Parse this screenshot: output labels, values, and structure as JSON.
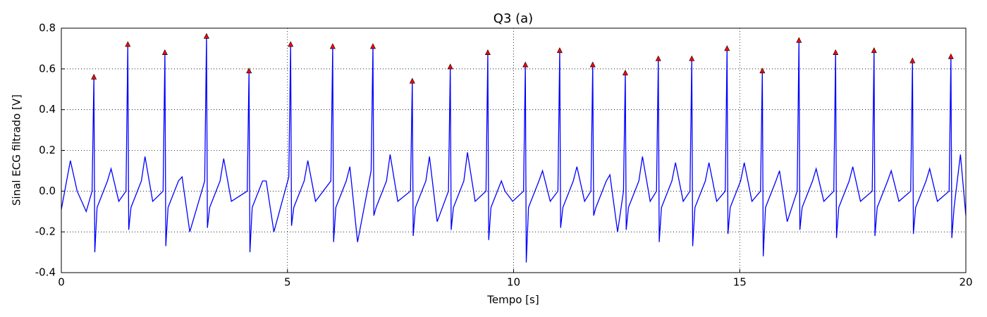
{
  "chart_data": {
    "type": "line",
    "title": "Q3 (a)",
    "xlabel": "Tempo [s]",
    "ylabel": "Sinal ECG filtrado [V]",
    "color": "#0000ff",
    "grid": true,
    "xlim": [
      0,
      20
    ],
    "ylim": [
      -0.4,
      0.8
    ],
    "xticks": [
      0,
      5,
      10,
      15,
      20
    ],
    "yticks": [
      -0.4,
      -0.2,
      {
        "value": 0,
        "label": "0.0"
      },
      0.2,
      0.4,
      0.6,
      0.8
    ],
    "x": [
      0,
      0.2,
      0.35,
      0.55,
      0.68,
      0.72,
      0.74,
      0.79,
      1.02,
      1.1,
      1.27,
      1.43,
      1.47,
      1.49,
      1.54,
      1.77,
      1.85,
      2.02,
      2.25,
      2.29,
      2.31,
      2.36,
      2.59,
      2.67,
      2.84,
      3.17,
      3.21,
      3.23,
      3.28,
      3.51,
      3.59,
      3.76,
      4.11,
      4.15,
      4.17,
      4.22,
      4.45,
      4.53,
      4.7,
      5.03,
      5.07,
      5.09,
      5.14,
      5.37,
      5.45,
      5.62,
      5.96,
      6.0,
      6.02,
      6.07,
      6.3,
      6.38,
      6.55,
      6.85,
      6.89,
      6.91,
      6.96,
      7.19,
      7.27,
      7.44,
      7.72,
      7.76,
      7.78,
      7.83,
      8.06,
      8.14,
      8.31,
      8.56,
      8.6,
      8.62,
      8.67,
      8.9,
      8.98,
      9.15,
      9.39,
      9.43,
      9.45,
      9.5,
      9.73,
      9.81,
      9.98,
      10.22,
      10.26,
      10.28,
      10.33,
      10.56,
      10.64,
      10.81,
      10.98,
      11.02,
      11.04,
      11.09,
      11.32,
      11.4,
      11.57,
      11.71,
      11.75,
      11.77,
      11.82,
      12.05,
      12.13,
      12.3,
      12.43,
      12.47,
      12.49,
      12.54,
      12.77,
      12.85,
      13.02,
      13.16,
      13.2,
      13.22,
      13.27,
      13.5,
      13.58,
      13.75,
      13.9,
      13.94,
      13.96,
      14.01,
      14.24,
      14.32,
      14.49,
      14.68,
      14.72,
      14.74,
      14.79,
      15.02,
      15.1,
      15.27,
      15.46,
      15.5,
      15.52,
      15.57,
      15.8,
      15.88,
      16.05,
      16.27,
      16.31,
      16.33,
      16.38,
      16.61,
      16.69,
      16.86,
      17.08,
      17.12,
      17.14,
      17.19,
      17.42,
      17.5,
      17.67,
      17.93,
      17.97,
      17.99,
      18.04,
      18.27,
      18.35,
      18.52,
      18.78,
      18.82,
      18.84,
      18.89,
      19.12,
      19.2,
      19.37,
      19.63,
      19.67,
      19.69,
      19.74,
      19.88,
      20.0
    ],
    "values": [
      -0.09,
      0.15,
      0.0,
      -0.1,
      0.0,
      0.56,
      -0.3,
      -0.08,
      0.05,
      0.11,
      -0.05,
      0.0,
      0.72,
      -0.19,
      -0.08,
      0.05,
      0.17,
      -0.05,
      0.0,
      0.68,
      -0.27,
      -0.08,
      0.05,
      0.07,
      -0.2,
      0.05,
      0.76,
      -0.18,
      -0.08,
      0.05,
      0.16,
      -0.05,
      0.0,
      0.59,
      -0.3,
      -0.08,
      0.05,
      0.05,
      -0.2,
      0.07,
      0.72,
      -0.17,
      -0.08,
      0.05,
      0.15,
      -0.05,
      0.05,
      0.71,
      -0.25,
      -0.08,
      0.05,
      0.12,
      -0.25,
      0.1,
      0.71,
      -0.12,
      -0.08,
      0.05,
      0.18,
      -0.05,
      0.0,
      0.54,
      -0.22,
      -0.08,
      0.05,
      0.17,
      -0.15,
      0.0,
      0.61,
      -0.19,
      -0.08,
      0.05,
      0.19,
      -0.05,
      0.0,
      0.68,
      -0.24,
      -0.08,
      0.05,
      0.0,
      -0.05,
      0.0,
      0.62,
      -0.35,
      -0.08,
      0.05,
      0.1,
      -0.05,
      0.0,
      0.69,
      -0.18,
      -0.08,
      0.05,
      0.12,
      -0.05,
      0.0,
      0.62,
      -0.12,
      -0.08,
      0.05,
      0.08,
      -0.2,
      0.0,
      0.58,
      -0.19,
      -0.08,
      0.05,
      0.17,
      -0.05,
      0.0,
      0.65,
      -0.25,
      -0.08,
      0.05,
      0.14,
      -0.05,
      0.0,
      0.65,
      -0.27,
      -0.08,
      0.05,
      0.14,
      -0.05,
      0.0,
      0.7,
      -0.21,
      -0.08,
      0.05,
      0.14,
      -0.05,
      0.0,
      0.59,
      -0.32,
      -0.08,
      0.05,
      0.1,
      -0.15,
      0.0,
      0.74,
      -0.19,
      -0.08,
      0.05,
      0.11,
      -0.05,
      0.0,
      0.68,
      -0.23,
      -0.08,
      0.05,
      0.12,
      -0.05,
      0.0,
      0.69,
      -0.22,
      -0.08,
      0.05,
      0.1,
      -0.05,
      0.0,
      0.64,
      -0.21,
      -0.08,
      0.05,
      0.11,
      -0.05,
      0.0,
      0.66,
      -0.23,
      -0.08,
      0.18,
      -0.12
    ],
    "peaks": {
      "type": "scatter",
      "marker": "triangle",
      "color": "#ff0000",
      "x": [
        0.72,
        1.47,
        2.29,
        3.21,
        4.15,
        5.07,
        6.0,
        6.89,
        7.76,
        8.6,
        9.43,
        10.26,
        11.02,
        11.75,
        12.47,
        13.2,
        13.94,
        14.72,
        15.5,
        16.31,
        17.12,
        17.97,
        18.82,
        19.67
      ],
      "values": [
        0.56,
        0.72,
        0.68,
        0.76,
        0.59,
        0.72,
        0.71,
        0.71,
        0.54,
        0.61,
        0.68,
        0.62,
        0.69,
        0.62,
        0.58,
        0.65,
        0.65,
        0.7,
        0.59,
        0.74,
        0.68,
        0.69,
        0.64,
        0.66
      ]
    }
  }
}
